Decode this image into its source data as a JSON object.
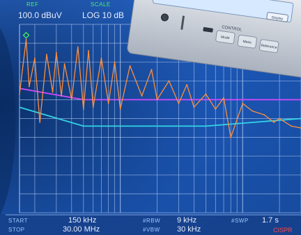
{
  "header": {
    "ref_level": "100.0 dBuV",
    "scale": "LOG 10 dB",
    "top_green_1": "REF",
    "top_green_2": "SCALE"
  },
  "instrument": {
    "usb_icon": "usb-icon",
    "power_icon": "power-icon",
    "display_label": "Display",
    "control_label": "CONTROL",
    "buttons": [
      "Mode",
      "Meas",
      "Reference"
    ]
  },
  "footer": {
    "start_label": "START",
    "start_value": "150 kHz",
    "stop_label": "STOP",
    "stop_value": "30.00 MHz",
    "rbw_label": "#RBW",
    "rbw_value": "9 kHz",
    "vbw_label": "#VBW",
    "vbw_value": "30 kHz",
    "swp_label": "#SWP",
    "swp_value": "1.7 s",
    "status": "CISPR"
  },
  "colors": {
    "screen_bg": "#1d57b6",
    "grid": "#b9d0f5",
    "trace": "#ff8f3c",
    "limit_magenta": "#d24bff",
    "limit_cyan": "#33d5e6",
    "marker": "#44f05a"
  },
  "chart_data": {
    "type": "line",
    "x_scale": "log",
    "xlim_mhz": [
      0.15,
      30.0
    ],
    "y_unit": "dBuV",
    "ylim": [
      0,
      100
    ],
    "ref_level": 100,
    "div_db": 10,
    "grid": true,
    "series": [
      {
        "type": "spectrum_trace",
        "x_mhz": [
          0.15,
          0.16,
          0.17,
          0.18,
          0.2,
          0.22,
          0.25,
          0.28,
          0.3,
          0.33,
          0.35,
          0.4,
          0.45,
          0.5,
          0.55,
          0.6,
          0.7,
          0.8,
          0.9,
          1.0,
          1.2,
          1.5,
          1.8,
          2.0,
          2.5,
          3.0,
          3.5,
          4.0,
          5.0,
          6.0,
          7.0,
          8.0,
          10.0,
          12.0,
          15.0,
          18.0,
          20.0,
          25.0,
          30.0
        ],
        "y": [
          63,
          78,
          92,
          67,
          82,
          48,
          84,
          64,
          85,
          62,
          79,
          60,
          88,
          55,
          86,
          56,
          82,
          58,
          80,
          55,
          78,
          62,
          76,
          60,
          70,
          58,
          68,
          56,
          63,
          55,
          61,
          40,
          58,
          54,
          52,
          48,
          50,
          46,
          45
        ]
      },
      {
        "type": "limit_line_magenta",
        "x_mhz": [
          0.15,
          0.5,
          5.0,
          30.0
        ],
        "y": [
          66,
          60,
          60,
          60
        ]
      },
      {
        "type": "limit_line_cyan",
        "x_mhz": [
          0.15,
          0.5,
          5.0,
          30.0
        ],
        "y": [
          56,
          46,
          46,
          50
        ]
      }
    ],
    "markers": [
      {
        "x_mhz": 0.17,
        "y": 92,
        "symbol": "diamond"
      }
    ]
  }
}
